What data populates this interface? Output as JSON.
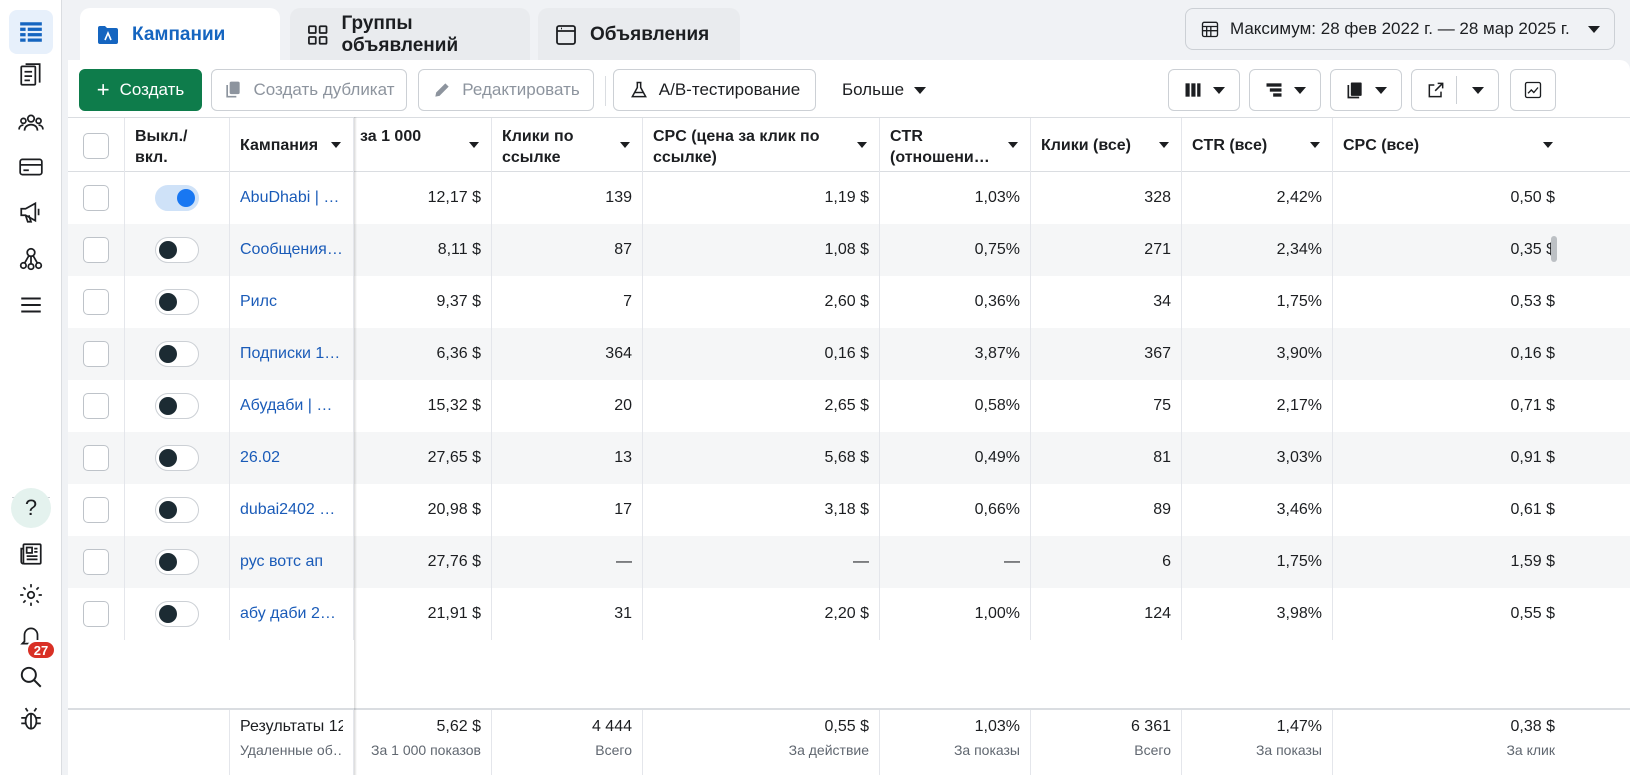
{
  "nav": {
    "items": [
      "table-icon",
      "pages-icon",
      "audience-icon",
      "billing-icon",
      "megaphone-icon",
      "network-icon",
      "menu-icon"
    ],
    "bottom": [
      "help-icon",
      "news-icon",
      "settings-icon",
      "bell-icon",
      "search-icon",
      "bug-icon"
    ],
    "help_label": "?",
    "notifications_count": "27"
  },
  "tabs": [
    {
      "label": "Кампании"
    },
    {
      "label": "Группы объявлений"
    },
    {
      "label": "Объявления"
    }
  ],
  "date_range": "Максимум: 28 фев 2022 г. — 28 мар 2025 г.",
  "toolbar": {
    "create": "Создать",
    "duplicate": "Создать дубликат",
    "edit": "Редактировать",
    "ab_test": "A/B-тестирование",
    "more": "Больше"
  },
  "table": {
    "headers": {
      "toggle": "Выкл./ вкл.",
      "campaign": "Кампания",
      "cpm": "за 1 000",
      "link_clicks": "Клики по ссылке",
      "cpc_link": "CPC (цена за клик по ссылке)",
      "ctr_link": "CTR (отношени…",
      "clicks_all": "Клики (все)",
      "ctr_all": "CTR (все)",
      "cpc_all": "CPC (все)"
    },
    "rows": [
      {
        "on": true,
        "name": "AbuDhabi | …",
        "cpm": "12,17 $",
        "link_clicks": "139",
        "cpc_link": "1,19 $",
        "ctr_link": "1,03%",
        "clicks_all": "328",
        "ctr_all": "2,42%",
        "cpc_all": "0,50 $"
      },
      {
        "on": false,
        "name": "Сообщения…",
        "cpm": "8,11 $",
        "link_clicks": "87",
        "cpc_link": "1,08 $",
        "ctr_link": "0,75%",
        "clicks_all": "271",
        "ctr_all": "2,34%",
        "cpc_all": "0,35 $"
      },
      {
        "on": false,
        "name": "Рилс",
        "cpm": "9,37 $",
        "link_clicks": "7",
        "cpc_link": "2,60 $",
        "ctr_link": "0,36%",
        "clicks_all": "34",
        "ctr_all": "1,75%",
        "cpc_all": "0,53 $"
      },
      {
        "on": false,
        "name": "Подписки 1…",
        "cpm": "6,36 $",
        "link_clicks": "364",
        "cpc_link": "0,16 $",
        "ctr_link": "3,87%",
        "clicks_all": "367",
        "ctr_all": "3,90%",
        "cpc_all": "0,16 $"
      },
      {
        "on": false,
        "name": "Абудаби | D…",
        "cpm": "15,32 $",
        "link_clicks": "20",
        "cpc_link": "2,65 $",
        "ctr_link": "0,58%",
        "clicks_all": "75",
        "ctr_all": "2,17%",
        "cpc_all": "0,71 $"
      },
      {
        "on": false,
        "name": "26.02",
        "cpm": "27,65 $",
        "link_clicks": "13",
        "cpc_link": "5,68 $",
        "ctr_link": "0,49%",
        "clicks_all": "81",
        "ctr_all": "3,03%",
        "cpc_all": "0,91 $"
      },
      {
        "on": false,
        "name": "dubai2402 …",
        "cpm": "20,98 $",
        "link_clicks": "17",
        "cpc_link": "3,18 $",
        "ctr_link": "0,66%",
        "clicks_all": "89",
        "ctr_all": "3,46%",
        "cpc_all": "0,61 $"
      },
      {
        "on": false,
        "name": "рус вотс ап",
        "cpm": "27,76 $",
        "link_clicks": "—",
        "cpc_link": "—",
        "ctr_link": "—",
        "clicks_all": "6",
        "ctr_all": "1,75%",
        "cpc_all": "1,59 $"
      },
      {
        "on": false,
        "name": "абу даби 2…",
        "cpm": "21,91 $",
        "link_clicks": "31",
        "cpc_link": "2,20 $",
        "ctr_link": "1,00%",
        "clicks_all": "124",
        "ctr_all": "3,98%",
        "cpc_all": "0,55 $"
      }
    ],
    "footer": {
      "results_label": "Результаты 12",
      "deleted_label": "Удаленные об…",
      "cpm": {
        "value": "5,62 $",
        "sub": "За 1 000 показов"
      },
      "link_clicks": {
        "value": "4 444",
        "sub": "Всего"
      },
      "cpc_link": {
        "value": "0,55 $",
        "sub": "За действие"
      },
      "ctr_link": {
        "value": "1,03%",
        "sub": "За показы"
      },
      "clicks_all": {
        "value": "6 361",
        "sub": "Всего"
      },
      "ctr_all": {
        "value": "1,47%",
        "sub": "За показы"
      },
      "cpc_all": {
        "value": "0,38 $",
        "sub": "За клик"
      }
    }
  }
}
